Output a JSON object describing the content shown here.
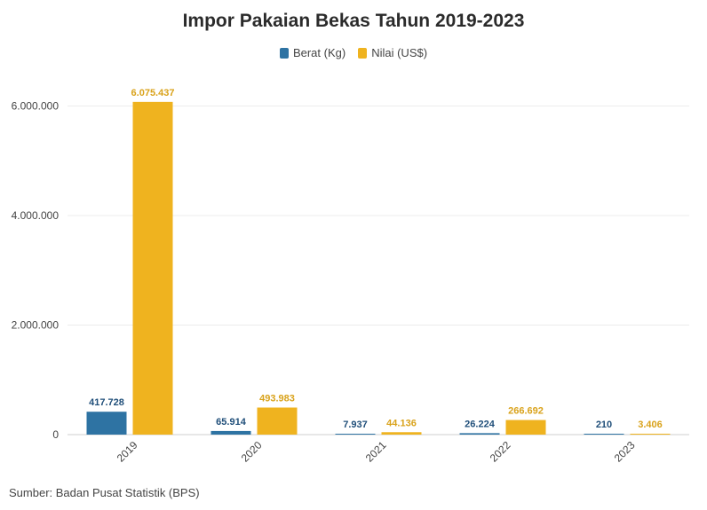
{
  "chart_data": {
    "type": "bar",
    "title": "Impor Pakaian Bekas Tahun 2019-2023",
    "categories": [
      "2019",
      "2020",
      "2021",
      "2022",
      "2023"
    ],
    "series": [
      {
        "name": "Berat (Kg)",
        "color": "#2e73a3",
        "values": [
          417728,
          65914,
          7937,
          26224,
          210
        ],
        "labels": [
          "417.728",
          "65.914",
          "7.937",
          "26.224",
          "210"
        ]
      },
      {
        "name": "Nilai (US$)",
        "color": "#efb31f",
        "values": [
          6075437,
          493983,
          44136,
          266692,
          3406
        ],
        "labels": [
          "6.075.437",
          "493.983",
          "44.136",
          "266.692",
          "3.406"
        ]
      }
    ],
    "yticks": [
      0,
      2000000,
      4000000,
      6000000
    ],
    "ytick_labels": [
      "0",
      "2.000.000",
      "4.000.000",
      "6.000.000"
    ],
    "ylim": [
      0,
      6300000
    ],
    "grid": true,
    "legend": "top-center",
    "source": "Sumber: Badan Pusat Statistik (BPS)"
  }
}
